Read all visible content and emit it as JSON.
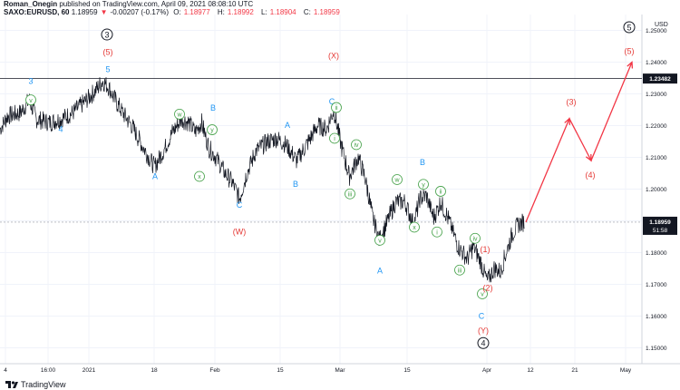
{
  "header": {
    "author": "Roman_Onegin",
    "published_text": "published on TradingView.com, April 09, 2021 08:08:10 UTC",
    "symbol": "SAXO:EURUSD, 60",
    "last": "1.18959",
    "arrow": "▼",
    "change": "-0.00207 (-0.17%)",
    "o_label": "O:",
    "o": "1.18977",
    "h_label": "H:",
    "h": "1.18992",
    "l_label": "L:",
    "l": "1.18904",
    "c_label": "C:",
    "c": "1.18959"
  },
  "footer": {
    "brand": "TradingView"
  },
  "colors": {
    "blue_label": "#2196f3",
    "red_label": "#e53935",
    "green_label": "#43a047",
    "projection": "#f23645",
    "price_tag_bg": "#131722"
  },
  "chart_data": {
    "type": "line",
    "symbol": "SAXO:EURUSD",
    "interval": "60",
    "currency": "USD",
    "ylim": [
      1.145,
      1.255
    ],
    "y_ticks": [
      "1.25000",
      "1.24000",
      "1.23000",
      "1.22000",
      "1.21000",
      "1.20000",
      "1.19000",
      "1.18000",
      "1.17000",
      "1.16000",
      "1.15000"
    ],
    "x_ticks": [
      "4",
      "16:00",
      "2021",
      "18",
      "Feb",
      "15",
      "Mar",
      "15",
      "Apr",
      "12",
      "21",
      "May"
    ],
    "price_series_knots": [
      {
        "x": 0,
        "y": 1.219
      },
      {
        "x": 8,
        "y": 1.223
      },
      {
        "x": 22,
        "y": 1.224
      },
      {
        "x": 32,
        "y": 1.228
      },
      {
        "x": 40,
        "y": 1.222
      },
      {
        "x": 55,
        "y": 1.221
      },
      {
        "x": 66,
        "y": 1.222
      },
      {
        "x": 80,
        "y": 1.224
      },
      {
        "x": 95,
        "y": 1.228
      },
      {
        "x": 105,
        "y": 1.231
      },
      {
        "x": 113,
        "y": 1.234
      },
      {
        "x": 120,
        "y": 1.232
      },
      {
        "x": 125,
        "y": 1.229
      },
      {
        "x": 133,
        "y": 1.225
      },
      {
        "x": 145,
        "y": 1.22
      },
      {
        "x": 158,
        "y": 1.213
      },
      {
        "x": 170,
        "y": 1.207
      },
      {
        "x": 180,
        "y": 1.212
      },
      {
        "x": 190,
        "y": 1.218
      },
      {
        "x": 200,
        "y": 1.222
      },
      {
        "x": 208,
        "y": 1.221
      },
      {
        "x": 215,
        "y": 1.218
      },
      {
        "x": 222,
        "y": 1.221
      },
      {
        "x": 230,
        "y": 1.213
      },
      {
        "x": 238,
        "y": 1.21
      },
      {
        "x": 248,
        "y": 1.205
      },
      {
        "x": 256,
        "y": 1.202
      },
      {
        "x": 264,
        "y": 1.197
      },
      {
        "x": 272,
        "y": 1.205
      },
      {
        "x": 282,
        "y": 1.212
      },
      {
        "x": 295,
        "y": 1.215
      },
      {
        "x": 305,
        "y": 1.216
      },
      {
        "x": 315,
        "y": 1.214
      },
      {
        "x": 327,
        "y": 1.209
      },
      {
        "x": 338,
        "y": 1.214
      },
      {
        "x": 350,
        "y": 1.22
      },
      {
        "x": 360,
        "y": 1.219
      },
      {
        "x": 368,
        "y": 1.225
      },
      {
        "x": 375,
        "y": 1.215
      },
      {
        "x": 385,
        "y": 1.204
      },
      {
        "x": 395,
        "y": 1.21
      },
      {
        "x": 403,
        "y": 1.203
      },
      {
        "x": 410,
        "y": 1.192
      },
      {
        "x": 418,
        "y": 1.184
      },
      {
        "x": 426,
        "y": 1.189
      },
      {
        "x": 436,
        "y": 1.196
      },
      {
        "x": 446,
        "y": 1.196
      },
      {
        "x": 456,
        "y": 1.189
      },
      {
        "x": 463,
        "y": 1.197
      },
      {
        "x": 470,
        "y": 1.198
      },
      {
        "x": 478,
        "y": 1.191
      },
      {
        "x": 486,
        "y": 1.196
      },
      {
        "x": 495,
        "y": 1.19
      },
      {
        "x": 505,
        "y": 1.182
      },
      {
        "x": 515,
        "y": 1.178
      },
      {
        "x": 522,
        "y": 1.182
      },
      {
        "x": 530,
        "y": 1.177
      },
      {
        "x": 537,
        "y": 1.171
      },
      {
        "x": 545,
        "y": 1.175
      },
      {
        "x": 552,
        "y": 1.174
      },
      {
        "x": 558,
        "y": 1.18
      },
      {
        "x": 565,
        "y": 1.186
      },
      {
        "x": 572,
        "y": 1.189
      },
      {
        "x": 578,
        "y": 1.1896
      }
    ],
    "projection": [
      {
        "x": 580,
        "y": 1.1896
      },
      {
        "x": 628,
        "y": 1.2222
      },
      {
        "x": 652,
        "y": 1.209
      },
      {
        "x": 697,
        "y": 1.24
      }
    ],
    "horizontal_level": {
      "value": 1.23482,
      "label": "1.23482"
    },
    "last_price": {
      "value": 1.18959,
      "label": "1.18959",
      "countdown": "51:58"
    },
    "labels": [
      {
        "text": "3",
        "x": 34,
        "y": 1.234,
        "color": "blue"
      },
      {
        "text": "4",
        "x": 67,
        "y": 1.2188,
        "color": "blue"
      },
      {
        "text": "5",
        "x": 119,
        "y": 1.2377,
        "color": "blue"
      },
      {
        "text": "3",
        "x": 118,
        "y": 1.2487,
        "color": "black",
        "circled": true
      },
      {
        "text": "(5)",
        "x": 119,
        "y": 1.2432,
        "color": "red"
      },
      {
        "text": "v",
        "x": 34,
        "y": 1.2281,
        "color": "green",
        "circled": true
      },
      {
        "text": "w",
        "x": 198,
        "y": 1.2236,
        "color": "green",
        "circled": true
      },
      {
        "text": "B",
        "x": 235,
        "y": 1.2256,
        "color": "blue"
      },
      {
        "text": "y",
        "x": 234,
        "y": 1.2187,
        "color": "green",
        "circled": true
      },
      {
        "text": "x",
        "x": 220,
        "y": 1.204,
        "color": "green",
        "circled": true
      },
      {
        "text": "A",
        "x": 171,
        "y": 1.204,
        "color": "blue"
      },
      {
        "text": "C",
        "x": 264,
        "y": 1.195,
        "color": "blue"
      },
      {
        "text": "(W)",
        "x": 264,
        "y": 1.1866,
        "color": "red"
      },
      {
        "text": "A",
        "x": 317,
        "y": 1.2201,
        "color": "blue"
      },
      {
        "text": "B",
        "x": 326,
        "y": 1.2016,
        "color": "blue"
      },
      {
        "text": "(X)",
        "x": 368,
        "y": 1.242,
        "color": "red"
      },
      {
        "text": "C",
        "x": 366,
        "y": 1.2276,
        "color": "blue"
      },
      {
        "text": "ii",
        "x": 371,
        "y": 1.2257,
        "color": "green",
        "circled": true
      },
      {
        "text": "iv",
        "x": 393,
        "y": 1.214,
        "color": "green",
        "circled": true
      },
      {
        "text": "i",
        "x": 369,
        "y": 1.216,
        "color": "green",
        "circled": true
      },
      {
        "text": "iii",
        "x": 386,
        "y": 1.1985,
        "color": "green",
        "circled": true
      },
      {
        "text": "v",
        "x": 419,
        "y": 1.1839,
        "color": "green",
        "circled": true
      },
      {
        "text": "A",
        "x": 419,
        "y": 1.1743,
        "color": "blue"
      },
      {
        "text": "w",
        "x": 438,
        "y": 1.203,
        "color": "green",
        "circled": true
      },
      {
        "text": "B",
        "x": 466,
        "y": 1.2085,
        "color": "blue"
      },
      {
        "text": "y",
        "x": 467,
        "y": 1.2015,
        "color": "green",
        "circled": true
      },
      {
        "text": "ii",
        "x": 486,
        "y": 1.1993,
        "color": "green",
        "circled": true
      },
      {
        "text": "x",
        "x": 457,
        "y": 1.188,
        "color": "green",
        "circled": true
      },
      {
        "text": "i",
        "x": 482,
        "y": 1.1865,
        "color": "green",
        "circled": true
      },
      {
        "text": "iv",
        "x": 524,
        "y": 1.1845,
        "color": "green",
        "circled": true
      },
      {
        "text": "iii",
        "x": 507,
        "y": 1.1745,
        "color": "green",
        "circled": true
      },
      {
        "text": "(1)",
        "x": 535,
        "y": 1.181,
        "color": "red"
      },
      {
        "text": "v",
        "x": 532,
        "y": 1.167,
        "color": "green",
        "circled": true
      },
      {
        "text": "(2)",
        "x": 538,
        "y": 1.1688,
        "color": "red"
      },
      {
        "text": "C",
        "x": 531,
        "y": 1.16,
        "color": "blue"
      },
      {
        "text": "(Y)",
        "x": 533,
        "y": 1.1555,
        "color": "red"
      },
      {
        "text": "4",
        "x": 533,
        "y": 1.1515,
        "color": "black",
        "circled": true
      },
      {
        "text": "(3)",
        "x": 630,
        "y": 1.2275,
        "color": "red"
      },
      {
        "text": "(4)",
        "x": 651,
        "y": 1.2045,
        "color": "red"
      },
      {
        "text": "5",
        "x": 694,
        "y": 1.251,
        "color": "black",
        "circled": true
      },
      {
        "text": "(5)",
        "x": 694,
        "y": 1.2435,
        "color": "red"
      }
    ]
  }
}
